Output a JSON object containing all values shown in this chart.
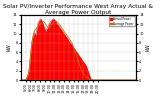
{
  "title": "Solar PV/Inverter Performance West Array Actual & Average Power Output",
  "title_fontsize": 4.2,
  "bg_color": "#ffffff",
  "grid_color": "#aaaaaa",
  "fill_color": "#ff0000",
  "line_color": "#cc0000",
  "avg_line_color": "#cc6600",
  "ylabel_left": "kW",
  "ylabel_right": "kW",
  "xlim": [
    0,
    144
  ],
  "ylim": [
    0,
    14
  ],
  "yticks_left": [
    0,
    2,
    4,
    6,
    8,
    10,
    12,
    14
  ],
  "yticks_right": [
    0,
    2,
    4,
    6,
    8,
    10,
    12,
    14
  ],
  "xtick_labels": [
    "5:00",
    "6:00",
    "7:00",
    "8:00",
    "9:00",
    "10:00",
    "11:00",
    "12:00",
    "13:00",
    "14:00",
    "15:00",
    "16:00",
    "17:00",
    "18:00",
    "19:00",
    "20:00"
  ],
  "xtick_positions": [
    6,
    12,
    18,
    24,
    30,
    36,
    42,
    48,
    54,
    60,
    66,
    72,
    78,
    84,
    90,
    96
  ],
  "actual_data_x": [
    0,
    4,
    6,
    7,
    8,
    9,
    10,
    11,
    12,
    13,
    14,
    15,
    16,
    17,
    18,
    19,
    20,
    21,
    22,
    23,
    24,
    25,
    26,
    27,
    28,
    29,
    30,
    31,
    32,
    33,
    34,
    35,
    36,
    37,
    38,
    39,
    40,
    41,
    42,
    43,
    44,
    45,
    46,
    47,
    48,
    49,
    50,
    51,
    52,
    53,
    54,
    55,
    56,
    57,
    58,
    59,
    60,
    61,
    62,
    63,
    64,
    65,
    66,
    67,
    68,
    69,
    70,
    71,
    72,
    73,
    74,
    75,
    76,
    77,
    78,
    79,
    80,
    81,
    82,
    83,
    84,
    85,
    86,
    87,
    88,
    89,
    90,
    91,
    92,
    93,
    94,
    95,
    96,
    100,
    110,
    120,
    130,
    144
  ],
  "actual_data_y": [
    0,
    0,
    0.1,
    0.3,
    0.8,
    1.2,
    2.0,
    3.5,
    5.5,
    7.0,
    8.5,
    9.2,
    9.8,
    10.2,
    10.0,
    9.5,
    11.0,
    12.0,
    12.5,
    12.8,
    13.0,
    13.2,
    12.9,
    12.5,
    12.0,
    11.5,
    11.0,
    10.5,
    10.8,
    11.2,
    11.5,
    12.0,
    12.2,
    12.5,
    12.8,
    13.0,
    13.1,
    13.2,
    13.0,
    12.8,
    12.5,
    12.2,
    12.0,
    11.8,
    11.5,
    11.2,
    11.0,
    10.8,
    10.5,
    10.2,
    10.0,
    9.8,
    9.5,
    9.2,
    9.0,
    8.8,
    8.5,
    8.2,
    8.0,
    7.8,
    7.5,
    7.2,
    7.0,
    6.8,
    6.5,
    6.2,
    6.0,
    5.8,
    5.5,
    5.2,
    5.0,
    4.8,
    4.5,
    4.2,
    4.0,
    3.8,
    3.5,
    3.2,
    3.0,
    2.5,
    2.0,
    1.5,
    1.0,
    0.5,
    0.2,
    0.05,
    0.02,
    0,
    0,
    0,
    0,
    0,
    0,
    0,
    0,
    0,
    0,
    0
  ],
  "avg_data_x": [
    0,
    5,
    6,
    7,
    8,
    9,
    10,
    11,
    12,
    13,
    14,
    15,
    16,
    17,
    18,
    19,
    20,
    21,
    22,
    23,
    24,
    25,
    26,
    27,
    28,
    29,
    30,
    31,
    32,
    33,
    34,
    35,
    36,
    37,
    38,
    39,
    40,
    41,
    42,
    43,
    44,
    45,
    46,
    47,
    48,
    49,
    50,
    51,
    52,
    53,
    54,
    55,
    56,
    57,
    58,
    59,
    60,
    61,
    62,
    63,
    64,
    65,
    66,
    67,
    68,
    69,
    70,
    71,
    72,
    73,
    74,
    75,
    76,
    77,
    78,
    79,
    80,
    81,
    82,
    83,
    84,
    85,
    86,
    87,
    88,
    89,
    90,
    91,
    92,
    93,
    94,
    95,
    96,
    100,
    144
  ],
  "avg_data_y": [
    0,
    0,
    0.05,
    0.2,
    0.6,
    1.0,
    1.8,
    3.0,
    4.8,
    6.5,
    8.0,
    9.2,
    10.0,
    10.5,
    10.8,
    11.0,
    11.2,
    11.3,
    11.5,
    11.8,
    12.0,
    12.2,
    12.4,
    12.5,
    12.6,
    12.5,
    12.3,
    12.0,
    11.8,
    11.5,
    11.3,
    11.2,
    11.3,
    11.5,
    11.8,
    12.0,
    12.2,
    12.4,
    12.5,
    12.6,
    12.7,
    12.6,
    12.4,
    12.2,
    12.0,
    11.8,
    11.5,
    11.2,
    11.0,
    10.8,
    10.5,
    10.2,
    10.0,
    9.8,
    9.5,
    9.2,
    9.0,
    8.8,
    8.5,
    8.2,
    8.0,
    7.5,
    7.0,
    6.5,
    6.0,
    5.5,
    5.0,
    4.5,
    4.0,
    3.5,
    3.0,
    2.5,
    2.0,
    1.8,
    1.5,
    1.2,
    1.0,
    0.8,
    0.6,
    0.5,
    0.4,
    0.3,
    0.2,
    0.15,
    0.1,
    0.05,
    0.02,
    0.01,
    0,
    0,
    0,
    0,
    0,
    0,
    0
  ],
  "legend_labels": [
    "Actual Power",
    "Average Power"
  ],
  "legend_colors": [
    "#ff0000",
    "#cc6600"
  ]
}
